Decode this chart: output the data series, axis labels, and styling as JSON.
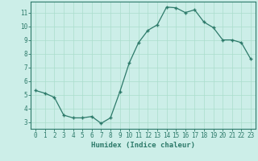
{
  "x": [
    0,
    1,
    2,
    3,
    4,
    5,
    6,
    7,
    8,
    9,
    10,
    11,
    12,
    13,
    14,
    15,
    16,
    17,
    18,
    19,
    20,
    21,
    22,
    23
  ],
  "y": [
    5.3,
    5.1,
    4.8,
    3.5,
    3.3,
    3.3,
    3.4,
    2.9,
    3.3,
    5.2,
    7.3,
    8.8,
    9.7,
    10.1,
    11.4,
    11.35,
    11.0,
    11.2,
    10.3,
    9.9,
    9.0,
    9.0,
    8.8,
    7.6
  ],
  "line_color": "#2d7a6a",
  "marker": "+",
  "marker_size": 3.5,
  "marker_linewidth": 1.0,
  "bg_color": "#cceee8",
  "grid_color": "#aaddcc",
  "xlabel": "Humidex (Indice chaleur)",
  "xlim": [
    -0.5,
    23.5
  ],
  "ylim": [
    2.5,
    11.8
  ],
  "yticks": [
    3,
    4,
    5,
    6,
    7,
    8,
    9,
    10,
    11
  ],
  "xticks": [
    0,
    1,
    2,
    3,
    4,
    5,
    6,
    7,
    8,
    9,
    10,
    11,
    12,
    13,
    14,
    15,
    16,
    17,
    18,
    19,
    20,
    21,
    22,
    23
  ],
  "tick_color": "#2d7a6a",
  "label_color": "#2d7a6a",
  "xlabel_fontsize": 6.5,
  "tick_fontsize": 5.5,
  "linewidth": 0.9
}
